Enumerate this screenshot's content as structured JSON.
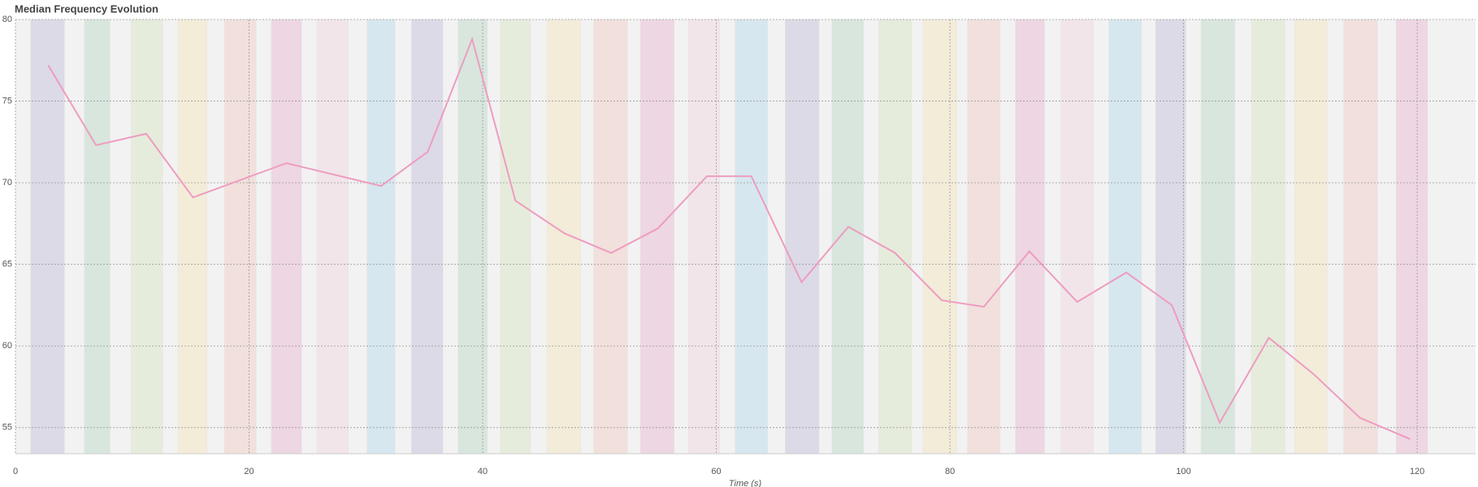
{
  "chart_data": {
    "type": "line",
    "title": "Median Frequency Evolution",
    "x_label": "Time (s)",
    "x": [
      2.8,
      6.9,
      11.2,
      15.2,
      23.2,
      31.3,
      35.3,
      39.1,
      42.8,
      47.0,
      51.0,
      55.0,
      59.2,
      63.0,
      67.3,
      71.3,
      75.3,
      79.3,
      82.9,
      86.8,
      90.9,
      95.1,
      99.0,
      103.1,
      107.3,
      111.1,
      115.1,
      119.4
    ],
    "values": [
      77.2,
      72.3,
      73.0,
      69.1,
      71.2,
      69.8,
      71.9,
      78.8,
      68.9,
      66.9,
      65.7,
      67.2,
      70.4,
      70.4,
      63.9,
      67.3,
      65.7,
      62.8,
      62.4,
      65.8,
      62.7,
      64.5,
      62.5,
      55.3,
      60.5,
      58.3,
      55.6,
      54.3
    ],
    "color": "#ee9cc0",
    "xlim": [
      0,
      125
    ],
    "ylim": [
      53.4,
      80
    ],
    "xticks": [
      0,
      20,
      40,
      60,
      80,
      100,
      120
    ],
    "yticks": [
      55,
      60,
      65,
      70,
      75,
      80
    ],
    "grid": true,
    "regions": [
      {
        "start": 1.3,
        "end": 4.2
      },
      {
        "start": 5.9,
        "end": 8.1
      },
      {
        "start": 9.9,
        "end": 12.6
      },
      {
        "start": 13.9,
        "end": 16.4
      },
      {
        "start": 17.9,
        "end": 20.6
      },
      {
        "start": 21.9,
        "end": 24.5
      },
      {
        "start": 25.8,
        "end": 28.5
      },
      {
        "start": 30.1,
        "end": 32.5
      },
      {
        "start": 33.9,
        "end": 36.6
      },
      {
        "start": 37.9,
        "end": 40.4
      },
      {
        "start": 41.5,
        "end": 44.1
      },
      {
        "start": 45.5,
        "end": 48.4
      },
      {
        "start": 49.5,
        "end": 52.4
      },
      {
        "start": 53.5,
        "end": 56.4
      },
      {
        "start": 57.6,
        "end": 60.3
      },
      {
        "start": 61.6,
        "end": 64.4
      },
      {
        "start": 65.9,
        "end": 68.8
      },
      {
        "start": 69.9,
        "end": 72.6
      },
      {
        "start": 73.9,
        "end": 76.7
      },
      {
        "start": 77.7,
        "end": 80.6
      },
      {
        "start": 81.5,
        "end": 84.3
      },
      {
        "start": 85.6,
        "end": 88.1
      },
      {
        "start": 89.5,
        "end": 92.3
      },
      {
        "start": 93.6,
        "end": 96.4
      },
      {
        "start": 97.6,
        "end": 100.2
      },
      {
        "start": 101.5,
        "end": 104.4
      },
      {
        "start": 105.8,
        "end": 108.7
      },
      {
        "start": 109.5,
        "end": 112.3
      },
      {
        "start": 113.7,
        "end": 116.6
      },
      {
        "start": 118.2,
        "end": 120.9
      }
    ],
    "region_colors": [
      "#dcdae6",
      "#d8e6dd",
      "#e6ecdb",
      "#f3ecd9",
      "#f1e0dc",
      "#eed6e3",
      "#f1e5ea",
      "#d7e7ef"
    ]
  }
}
